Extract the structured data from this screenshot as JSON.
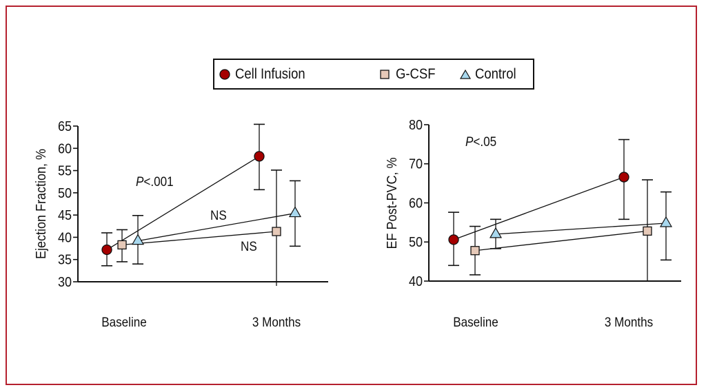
{
  "colors": {
    "frame": "#b5202e",
    "cell_infusion": "#a50000",
    "gcsf": "#e6c9b8",
    "control": "#a8d8ee",
    "ink": "#111111"
  },
  "legend": {
    "items": [
      {
        "label": "Cell Infusion",
        "marker": "circle",
        "series": "cell_infusion"
      },
      {
        "label": "G-CSF",
        "marker": "square",
        "series": "gcsf"
      },
      {
        "label": "Control",
        "marker": "triangle",
        "series": "control"
      }
    ]
  },
  "chart_data": [
    {
      "type": "line",
      "title": "",
      "xlabel": "",
      "ylabel": "Ejection Fraction, %",
      "categories": [
        "Baseline",
        "3 Months"
      ],
      "ylim": [
        30,
        65
      ],
      "yticks": [
        30,
        35,
        40,
        45,
        50,
        55,
        60,
        65
      ],
      "grid": false,
      "legend": "top-center",
      "annotations": [
        {
          "text_prefix": "P",
          "text": "<.001",
          "italic_prefix": true,
          "refers_to": "Cell Infusion"
        },
        {
          "text": "NS",
          "refers_to": "Control"
        },
        {
          "text": "NS",
          "refers_to": "G-CSF"
        }
      ],
      "series": [
        {
          "name": "Cell Infusion",
          "marker": "circle",
          "values": [
            37.2,
            58.2
          ],
          "err_low": [
            33.6,
            50.7
          ],
          "err_high": [
            41.0,
            65.4
          ]
        },
        {
          "name": "G-CSF",
          "marker": "square",
          "values": [
            38.3,
            41.3
          ],
          "err_low": [
            34.5,
            29.0
          ],
          "err_high": [
            41.7,
            55.1
          ]
        },
        {
          "name": "Control",
          "marker": "triangle",
          "values": [
            39.2,
            45.4
          ],
          "err_low": [
            34.0,
            38.0
          ],
          "err_high": [
            44.9,
            52.7
          ]
        }
      ]
    },
    {
      "type": "line",
      "title": "",
      "xlabel": "",
      "ylabel": "EF Post-PVC, %",
      "categories": [
        "Baseline",
        "3 Months"
      ],
      "ylim": [
        40,
        80
      ],
      "yticks": [
        40,
        50,
        60,
        70,
        80
      ],
      "grid": false,
      "legend": "top-center",
      "annotations": [
        {
          "text_prefix": "P",
          "text": "<.05",
          "italic_prefix": true,
          "refers_to": "Cell Infusion"
        }
      ],
      "series": [
        {
          "name": "Cell Infusion",
          "marker": "circle",
          "values": [
            50.6,
            66.6
          ],
          "err_low": [
            44.0,
            55.8
          ],
          "err_high": [
            57.6,
            76.2
          ]
        },
        {
          "name": "G-CSF",
          "marker": "square",
          "values": [
            47.8,
            52.8
          ],
          "err_low": [
            41.6,
            40.0
          ],
          "err_high": [
            54.0,
            65.9
          ]
        },
        {
          "name": "Control",
          "marker": "triangle",
          "values": [
            52.0,
            54.8
          ],
          "err_low": [
            48.3,
            45.4
          ],
          "err_high": [
            55.8,
            62.8
          ]
        }
      ]
    }
  ]
}
